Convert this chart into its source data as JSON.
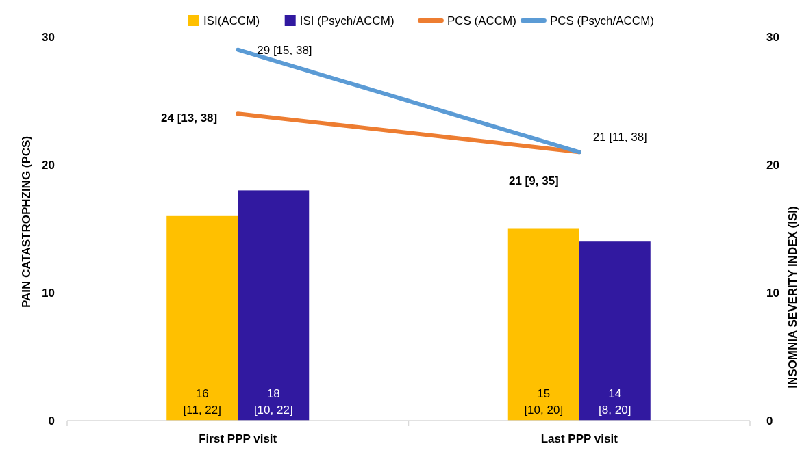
{
  "chart_data": {
    "type": "bar",
    "ylabel": "PAIN CATASTROPHZING (PCS)",
    "y2label": "INSOMNIA SEVERITY INDEX (ISI)",
    "categories": [
      "First PPP visit",
      "Last PPP visit"
    ],
    "series": [
      {
        "name": "ISI(ACCM)",
        "axis": "y2",
        "color": "#ffc000",
        "values": [
          16,
          15
        ],
        "value_labels": [
          "16\n[11, 22]",
          "15\n[10, 20]"
        ]
      },
      {
        "name": "ISI (Psych/ACCM)",
        "axis": "y2",
        "color": "#3119a0",
        "values": [
          18,
          14
        ],
        "value_labels": [
          "18\n[10, 22]",
          "14\n[8, 20]"
        ]
      },
      {
        "name": "PCS (ACCM)",
        "type": "line",
        "color": "#ed7d31",
        "values": [
          24,
          21
        ],
        "value_labels": [
          "24 [13, 38]",
          "21 [9, 35]"
        ]
      },
      {
        "name": "PCS (Psych/ACCM)",
        "type": "line",
        "color": "#5b9bd5",
        "values": [
          29,
          21
        ],
        "value_labels": [
          "29 [15, 38]",
          "21 [11, 38]"
        ]
      }
    ],
    "ylim": [
      0,
      30
    ],
    "yticks": [
      0,
      10,
      20,
      30
    ],
    "y2lim": [
      0,
      30
    ],
    "y2ticks": [
      0,
      10,
      20,
      30
    ],
    "grid": false,
    "legend": "top",
    "marker": "none",
    "line_style": "solid"
  }
}
